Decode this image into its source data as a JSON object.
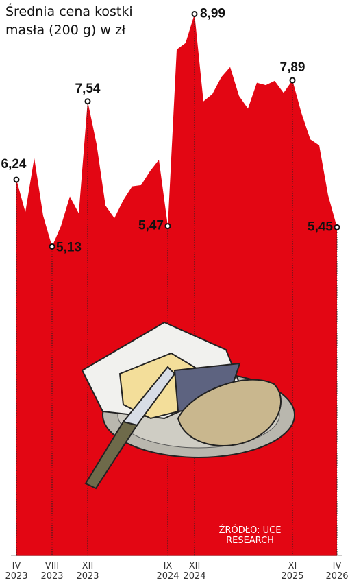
{
  "chart_data": {
    "type": "area",
    "title": "Średnia cena kostki masła (200 g) w zł",
    "source": "ŹRÓDŁO: UCE RESEARCH",
    "color": "#e30613",
    "categories": [
      "IV 2023",
      null,
      null,
      null,
      "VIII 2023",
      null,
      null,
      null,
      "XII 2023",
      null,
      null,
      null,
      null,
      null,
      null,
      null,
      null,
      "IX 2024",
      null,
      null,
      "XII 2024",
      null,
      null,
      null,
      null,
      null,
      null,
      null,
      null,
      null,
      null,
      "XI 2025",
      null,
      null,
      null,
      null,
      "IV 2026"
    ],
    "values": [
      6.24,
      5.7,
      6.6,
      5.64,
      5.13,
      5.47,
      5.96,
      5.68,
      7.54,
      6.83,
      5.81,
      5.6,
      5.9,
      6.13,
      6.15,
      6.38,
      6.57,
      5.47,
      8.4,
      8.51,
      8.99,
      7.54,
      7.66,
      7.94,
      8.11,
      7.63,
      7.42,
      7.85,
      7.81,
      7.88,
      7.68,
      7.89,
      7.35,
      6.91,
      6.81,
      5.98,
      5.45
    ],
    "value_labels": [
      "6,24",
      null,
      null,
      null,
      "5,13",
      null,
      null,
      null,
      "7,54",
      null,
      null,
      null,
      null,
      null,
      null,
      null,
      null,
      "5,47",
      null,
      null,
      "8,99",
      null,
      null,
      null,
      null,
      null,
      null,
      null,
      null,
      null,
      null,
      "7,89",
      null,
      null,
      null,
      null,
      "5,45"
    ],
    "ylim": [
      0,
      9.2
    ]
  }
}
